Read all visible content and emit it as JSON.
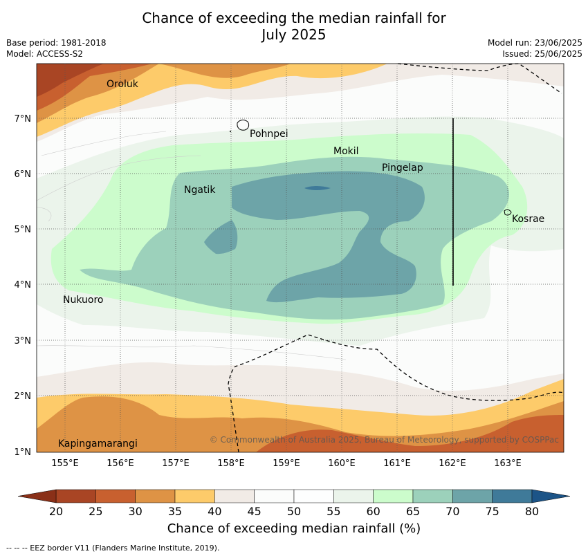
{
  "title_line1": "Chance of exceeding the median rainfall for",
  "title_line2": "July 2025",
  "base_period": "Base period: 1981-2018",
  "model": "Model: ACCESS-S2",
  "model_run": "Model run: 23/06/2025",
  "issued": "Issued: 25/06/2025",
  "copyright": "© Commonwealth of Australia 2025, Bureau of Meteorology, supported by COSPPac",
  "footnote": "--  --  -- EEZ border V11 (Flanders Marine Institute, 2019).",
  "colorbar": {
    "label": "Chance of exceeding median rainfall (%)",
    "ticks": [
      "20",
      "25",
      "30",
      "35",
      "40",
      "45",
      "50",
      "55",
      "60",
      "65",
      "70",
      "75",
      "80"
    ],
    "colors": [
      "#a94524",
      "#c8602f",
      "#de9345",
      "#fdcb6a",
      "#f1ebe6",
      "#fbfcfb",
      "#fdfefe",
      "#ebf4eb",
      "#ccfccc",
      "#9cd1bb",
      "#6da4a8",
      "#3f7a99",
      "#1c5487"
    ],
    "extend_low_color": "#8a3018",
    "extend_high_color": "#1c5487"
  },
  "axes": {
    "lon_labels": [
      "155°E",
      "156°E",
      "157°E",
      "158°E",
      "159°E",
      "160°E",
      "161°E",
      "162°E",
      "163°E"
    ],
    "lat_labels": [
      "7°N",
      "6°N",
      "5°N",
      "4°N",
      "3°N",
      "2°N",
      "1°N"
    ]
  },
  "places": [
    "Oroluk",
    "Pohnpei",
    "Mokil",
    "Pingelap",
    "Ngatik",
    "Kosrae",
    "Nukuoro",
    "Kapingamarangi"
  ]
}
